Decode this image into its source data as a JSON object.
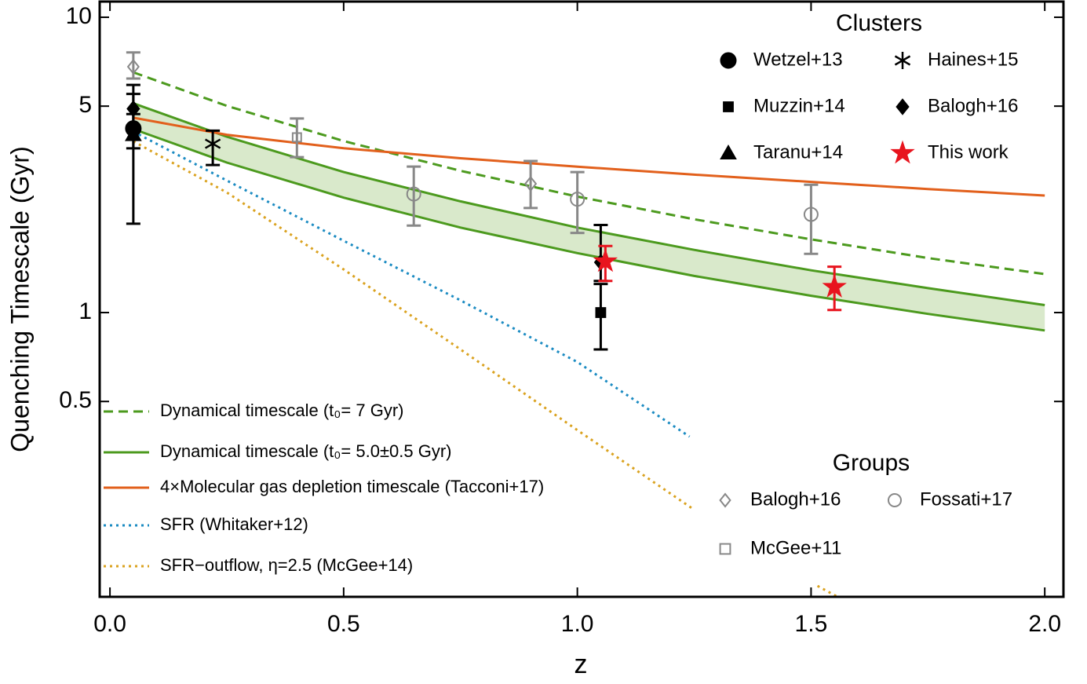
{
  "chart_data": {
    "type": "scatter",
    "xlabel": "z",
    "ylabel": "Quenching Timescale (Gyr)",
    "xlim": [
      -0.022,
      2.04
    ],
    "ylim": [
      0.109,
      11.3
    ],
    "log_y": true,
    "xticks": [
      {
        "value": 0,
        "label": "0.0"
      },
      0.5,
      {
        "value": 1,
        "label": "1.0"
      },
      1.5,
      {
        "value": 2,
        "label": "2.0"
      }
    ],
    "yticks": [
      0.5,
      1,
      5,
      10
    ],
    "lines": [
      {
        "name": "Dynamical timescale (t₀= 7 Gyr)",
        "color": "#4c9a1e",
        "style": "dashed",
        "x": [
          0.05,
          0.25,
          0.5,
          0.75,
          1.0,
          1.25,
          1.5,
          1.75,
          2.0
        ],
        "values": [
          6.51,
          5.01,
          3.81,
          3.02,
          2.47,
          2.07,
          1.77,
          1.53,
          1.35
        ]
      },
      {
        "name": "4×Molecular gas depletion timescale (Tacconi+17)",
        "color": "#e2601c",
        "style": "solid",
        "x": [
          0.05,
          0.25,
          0.5,
          0.75,
          1.0,
          1.25,
          1.5,
          1.75,
          2.0
        ],
        "values": [
          4.57,
          4.0,
          3.6,
          3.33,
          3.12,
          2.93,
          2.77,
          2.62,
          2.49
        ]
      },
      {
        "name": "SFR (Whitaker+12)",
        "color": "#1b8bc2",
        "style": "dotted",
        "x": [
          0.05,
          0.25,
          0.5,
          0.75,
          1.0,
          1.24
        ],
        "values": [
          4.1,
          2.8,
          1.75,
          1.1,
          0.68,
          0.38
        ]
      },
      {
        "name": "SFR−outflow, η=2.5 (McGee+14)",
        "color": "#daa21f",
        "style": "dotted",
        "x": [
          0.05,
          0.25,
          0.5,
          0.75,
          1.0,
          1.25,
          1.5,
          1.6
        ],
        "values": [
          3.8,
          2.55,
          1.4,
          0.75,
          0.4,
          0.215,
          0.122,
          0.1
        ]
      }
    ],
    "band": {
      "name": "Dynamical timescale (t₀= 5.0±0.5 Gyr)",
      "color": "#4c9a1e",
      "fill": "#d9e9cb",
      "x": [
        0.05,
        0.25,
        0.5,
        0.75,
        1.0,
        1.25,
        1.5,
        1.75,
        2.0
      ],
      "upper": [
        5.11,
        3.94,
        2.99,
        2.38,
        1.94,
        1.63,
        1.39,
        1.21,
        1.06
      ],
      "lower": [
        4.18,
        3.22,
        2.45,
        1.94,
        1.59,
        1.33,
        1.14,
        0.99,
        0.87
      ]
    },
    "marker_groups": [
      {
        "title": "Clusters",
        "series": [
          {
            "name": "Wetzel+13",
            "marker": "circle",
            "filled": true,
            "color": "#000000",
            "x": [
              0.05
            ],
            "values": [
              4.2
            ],
            "err_minus": [
              0.6
            ],
            "err_plus": [
              0.5
            ]
          },
          {
            "name": "Haines+15",
            "marker": "asterisk",
            "filled": true,
            "color": "#000000",
            "x": [
              0.22
            ],
            "values": [
              3.73
            ],
            "err_minus": [
              0.57
            ],
            "err_plus": [
              0.4
            ]
          },
          {
            "name": "Muzzin+14",
            "marker": "square",
            "filled": true,
            "color": "#000000",
            "x": [
              1.05
            ],
            "values": [
              1.0
            ],
            "err_minus": [
              0.25
            ],
            "err_plus": [
              0.25
            ]
          },
          {
            "name": "Balogh+16",
            "marker": "diamond",
            "filled": true,
            "color": "#000000",
            "x": [
              0.05,
              1.05
            ],
            "values": [
              4.9,
              1.48
            ],
            "err_minus": [
              0.6,
              0.2
            ],
            "err_plus": [
              1.0,
              0.5
            ]
          },
          {
            "name": "Taranu+14",
            "marker": "triangle",
            "filled": true,
            "color": "#000000",
            "x": [
              0.05
            ],
            "values": [
              4.0
            ],
            "err_minus": [
              2.0
            ],
            "err_plus": [
              1.5
            ]
          },
          {
            "name": "This work",
            "marker": "star",
            "filled": true,
            "color": "#e8141e",
            "x": [
              1.06,
              1.55
            ],
            "values": [
              1.49,
              1.22
            ],
            "err_minus": [
              0.21,
              0.2
            ],
            "err_plus": [
              0.19,
              0.21
            ]
          }
        ]
      },
      {
        "title": "Groups",
        "series": [
          {
            "name": "Balogh+16",
            "marker": "diamond",
            "filled": false,
            "color": "#888888",
            "x": [
              0.05,
              0.9
            ],
            "values": [
              6.8,
              2.73
            ],
            "err_minus": [
              0.6,
              0.47
            ],
            "err_plus": [
              0.8,
              0.53
            ]
          },
          {
            "name": "Fossati+17",
            "marker": "circle",
            "filled": false,
            "color": "#888888",
            "x": [
              0.65,
              1.0,
              1.5
            ],
            "values": [
              2.52,
              2.42,
              2.15
            ],
            "err_minus": [
              0.55,
              0.56,
              0.57
            ],
            "err_plus": [
              0.6,
              0.57,
              0.56
            ]
          },
          {
            "name": "McGee+11",
            "marker": "square",
            "filled": false,
            "color": "#888888",
            "x": [
              0.4
            ],
            "values": [
              3.92
            ],
            "err_minus": [
              0.56
            ],
            "err_plus": [
              0.62
            ]
          }
        ]
      }
    ]
  }
}
